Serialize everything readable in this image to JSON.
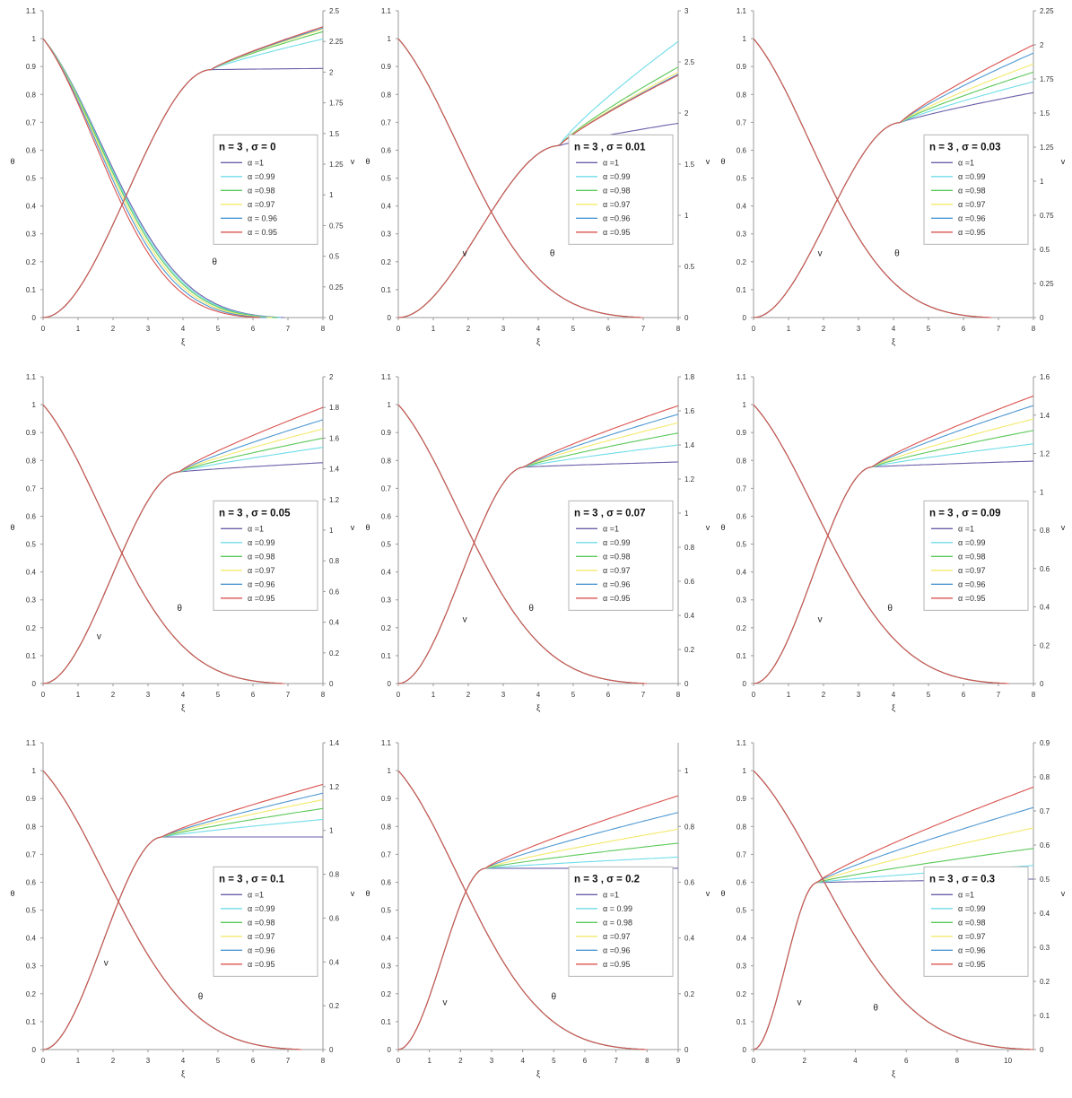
{
  "colors": {
    "a1": "#6b5fa8",
    "a099": "#6fdde8",
    "a098": "#5cc85a",
    "a097": "#f3e96b",
    "a096": "#4f98d2",
    "a095": "#d9534f",
    "axis": "#9a9a9a"
  },
  "chart_data": [
    {
      "type": "line",
      "legend_title": "n = 3 , σ = 0",
      "xlabel": "ξ",
      "ylabel_left": "θ",
      "ylabel_right": "v",
      "xlim": [
        0,
        8
      ],
      "xticks": [
        0,
        1,
        2,
        3,
        4,
        5,
        6,
        7,
        8
      ],
      "ylim_left": [
        0,
        1.1
      ],
      "yticks_left": [
        0,
        0.1,
        0.2,
        0.3,
        0.4,
        0.5,
        0.6,
        0.7,
        0.8,
        0.9,
        1,
        1.1
      ],
      "ylim_right": [
        0,
        2.5
      ],
      "yticks_right": [
        0,
        0.25,
        0.5,
        0.75,
        1,
        1.25,
        1.5,
        1.75,
        2,
        2.25,
        2.5
      ],
      "legend": [
        "α =1",
        "α =0.99",
        "α =0.98",
        "α =0.97",
        "α = 0.96",
        "α = 0.95"
      ],
      "annotations": [
        {
          "text": "θ",
          "x": 4.9,
          "y": 0.19
        }
      ],
      "theta_zero": [
        6.9,
        6.8,
        6.7,
        6.55,
        6.4,
        6.2
      ],
      "v_plateau": [
        2.02,
        2.02,
        2.02,
        2.02,
        2.02,
        2.02
      ],
      "v_knee": [
        4.8,
        4.8,
        4.8,
        4.8,
        4.8,
        4.8
      ],
      "v_end": [
        2.03,
        2.27,
        2.33,
        2.35,
        2.36,
        2.37
      ],
      "legend_pos": "middle-right"
    },
    {
      "type": "line",
      "legend_title": "n = 3 , σ = 0.01",
      "xlabel": "ξ",
      "ylabel_left": "θ",
      "ylabel_right": "v",
      "xlim": [
        0,
        8
      ],
      "xticks": [
        0,
        1,
        2,
        3,
        4,
        5,
        6,
        7,
        8
      ],
      "ylim_left": [
        0,
        1.1
      ],
      "yticks_left": [
        0,
        0.1,
        0.2,
        0.3,
        0.4,
        0.5,
        0.6,
        0.7,
        0.8,
        0.9,
        1,
        1.1
      ],
      "ylim_right": [
        0,
        3
      ],
      "yticks_right": [
        0,
        0.5,
        1,
        1.5,
        2,
        2.5,
        3
      ],
      "legend": [
        "α =1",
        "α =0.99",
        "α =0.98",
        "α =0.97",
        "α =0.96",
        "α =0.95"
      ],
      "annotations": [
        {
          "text": "v",
          "x": 1.9,
          "y": 0.22
        },
        {
          "text": "θ",
          "x": 4.4,
          "y": 0.22
        }
      ],
      "theta_zero": [
        7.0,
        7.0,
        7.0,
        7.0,
        7.0,
        7.0
      ],
      "v_plateau": [
        1.68,
        1.68,
        1.68,
        1.68,
        1.68,
        1.68
      ],
      "v_knee": [
        4.6,
        4.6,
        4.6,
        4.6,
        4.6,
        4.6
      ],
      "v_end": [
        1.9,
        2.7,
        2.45,
        2.4,
        2.38,
        2.37
      ],
      "legend_pos": "middle-right"
    },
    {
      "type": "line",
      "legend_title": "n = 3 , σ = 0.03",
      "xlabel": "ξ",
      "ylabel_left": "θ",
      "ylabel_right": "v",
      "xlim": [
        0,
        8
      ],
      "xticks": [
        0,
        1,
        2,
        3,
        4,
        5,
        6,
        7,
        8
      ],
      "ylim_left": [
        0,
        1.1
      ],
      "yticks_left": [
        0,
        0.1,
        0.2,
        0.3,
        0.4,
        0.5,
        0.6,
        0.7,
        0.8,
        0.9,
        1,
        1.1
      ],
      "ylim_right": [
        0,
        2.25
      ],
      "yticks_right": [
        0,
        0.25,
        0.5,
        0.75,
        1,
        1.25,
        1.5,
        1.75,
        2,
        2.25
      ],
      "legend": [
        "α =1",
        "α =0.99",
        "α =0.98",
        "α =0.97",
        "α =0.96",
        "α =0.95"
      ],
      "annotations": [
        {
          "text": "v",
          "x": 1.9,
          "y": 0.22
        },
        {
          "text": "θ",
          "x": 4.1,
          "y": 0.22
        }
      ],
      "theta_zero": [
        6.8,
        6.8,
        6.8,
        6.8,
        6.8,
        6.8
      ],
      "v_plateau": [
        1.43,
        1.43,
        1.43,
        1.43,
        1.43,
        1.43
      ],
      "v_knee": [
        4.2,
        4.2,
        4.2,
        4.2,
        4.2,
        4.2
      ],
      "v_end": [
        1.65,
        1.73,
        1.8,
        1.86,
        1.94,
        2.0
      ],
      "legend_pos": "middle-right"
    },
    {
      "type": "line",
      "legend_title": "n = 3 , σ = 0.05",
      "xlabel": "ξ",
      "ylabel_left": "θ",
      "ylabel_right": "v",
      "xlim": [
        0,
        8
      ],
      "xticks": [
        0,
        1,
        2,
        3,
        4,
        5,
        6,
        7,
        8
      ],
      "ylim_left": [
        0,
        1.1
      ],
      "yticks_left": [
        0,
        0.1,
        0.2,
        0.3,
        0.4,
        0.5,
        0.6,
        0.7,
        0.8,
        0.9,
        1,
        1.1
      ],
      "ylim_right": [
        0,
        2
      ],
      "yticks_right": [
        0,
        0.2,
        0.4,
        0.6,
        0.8,
        1,
        1.2,
        1.4,
        1.6,
        1.8,
        2
      ],
      "legend": [
        "α =1",
        "α =0.99",
        "α =0.98",
        "α =0.97",
        "α =0.96",
        "α =0.95"
      ],
      "annotations": [
        {
          "text": "v",
          "x": 1.6,
          "y": 0.16
        },
        {
          "text": "θ",
          "x": 3.9,
          "y": 0.26
        }
      ],
      "theta_zero": [
        6.9,
        6.9,
        6.9,
        6.9,
        6.9,
        6.9
      ],
      "v_plateau": [
        1.38,
        1.38,
        1.38,
        1.38,
        1.38,
        1.38
      ],
      "v_knee": [
        3.9,
        3.9,
        3.9,
        3.9,
        3.9,
        3.9
      ],
      "v_end": [
        1.44,
        1.54,
        1.6,
        1.66,
        1.72,
        1.8
      ],
      "legend_pos": "middle-right"
    },
    {
      "type": "line",
      "legend_title": "n = 3 , σ = 0.07",
      "xlabel": "ξ",
      "ylabel_left": "θ",
      "ylabel_right": "v",
      "xlim": [
        0,
        8
      ],
      "xticks": [
        0,
        1,
        2,
        3,
        4,
        5,
        6,
        7,
        8
      ],
      "ylim_left": [
        0,
        1.1
      ],
      "yticks_left": [
        0,
        0.1,
        0.2,
        0.3,
        0.4,
        0.5,
        0.6,
        0.7,
        0.8,
        0.9,
        1,
        1.1
      ],
      "ylim_right": [
        0,
        1.8
      ],
      "yticks_right": [
        0,
        0.2,
        0.4,
        0.6,
        0.8,
        1,
        1.2,
        1.4,
        1.6,
        1.8
      ],
      "legend": [
        "α =1",
        "α =0.99",
        "α =0.98",
        "α =0.97",
        "α =0.96",
        "α =0.95"
      ],
      "annotations": [
        {
          "text": "v",
          "x": 1.9,
          "y": 0.22
        },
        {
          "text": "θ",
          "x": 3.8,
          "y": 0.26
        }
      ],
      "theta_zero": [
        7.1,
        7.1,
        7.1,
        7.1,
        7.1,
        7.1
      ],
      "v_plateau": [
        1.27,
        1.27,
        1.27,
        1.27,
        1.27,
        1.27
      ],
      "v_knee": [
        3.6,
        3.6,
        3.6,
        3.6,
        3.6,
        3.6
      ],
      "v_end": [
        1.3,
        1.4,
        1.47,
        1.53,
        1.58,
        1.63
      ],
      "legend_pos": "middle-right"
    },
    {
      "type": "line",
      "legend_title": "n = 3 , σ = 0.09",
      "xlabel": "ξ",
      "ylabel_left": "θ",
      "ylabel_right": "v",
      "xlim": [
        0,
        8
      ],
      "xticks": [
        0,
        1,
        2,
        3,
        4,
        5,
        6,
        7,
        8
      ],
      "ylim_left": [
        0,
        1.1
      ],
      "yticks_left": [
        0,
        0.1,
        0.2,
        0.3,
        0.4,
        0.5,
        0.6,
        0.7,
        0.8,
        0.9,
        1,
        1.1
      ],
      "ylim_right": [
        0,
        1.6
      ],
      "yticks_right": [
        0,
        0.2,
        0.4,
        0.6,
        0.8,
        1,
        1.2,
        1.4,
        1.6
      ],
      "legend": [
        "α =1",
        "α =0.99",
        "α =0.98",
        "α =0.97",
        "α =0.96",
        "α =0.95"
      ],
      "annotations": [
        {
          "text": "v",
          "x": 1.9,
          "y": 0.22
        },
        {
          "text": "θ",
          "x": 3.9,
          "y": 0.26
        }
      ],
      "theta_zero": [
        7.3,
        7.3,
        7.3,
        7.3,
        7.3,
        7.3
      ],
      "v_plateau": [
        1.13,
        1.13,
        1.13,
        1.13,
        1.13,
        1.13
      ],
      "v_knee": [
        3.4,
        3.4,
        3.4,
        3.4,
        3.4,
        3.4
      ],
      "v_end": [
        1.16,
        1.25,
        1.32,
        1.38,
        1.45,
        1.5
      ],
      "legend_pos": "middle-right"
    },
    {
      "type": "line",
      "legend_title": "n = 3 , σ = 0.1",
      "xlabel": "ξ",
      "ylabel_left": "θ",
      "ylabel_right": "v",
      "xlim": [
        0,
        8
      ],
      "xticks": [
        0,
        1,
        2,
        3,
        4,
        5,
        6,
        7,
        8
      ],
      "ylim_left": [
        0,
        1.1
      ],
      "yticks_left": [
        0,
        0.1,
        0.2,
        0.3,
        0.4,
        0.5,
        0.6,
        0.7,
        0.8,
        0.9,
        1,
        1.1
      ],
      "ylim_right": [
        0,
        1.4
      ],
      "yticks_right": [
        0,
        0.2,
        0.4,
        0.6,
        0.8,
        1,
        1.2,
        1.4
      ],
      "legend": [
        "α =1",
        "α =0.99",
        "α =0.98",
        "α =0.97",
        "α =0.96",
        "α =0.95"
      ],
      "annotations": [
        {
          "text": "v",
          "x": 1.8,
          "y": 0.3
        },
        {
          "text": "θ",
          "x": 4.5,
          "y": 0.18
        }
      ],
      "theta_zero": [
        7.4,
        7.4,
        7.4,
        7.4,
        7.4,
        7.4
      ],
      "v_plateau": [
        0.97,
        0.97,
        0.97,
        0.97,
        0.97,
        0.97
      ],
      "v_knee": [
        3.4,
        3.4,
        3.4,
        3.4,
        3.4,
        3.4
      ],
      "v_end": [
        0.97,
        1.05,
        1.1,
        1.14,
        1.17,
        1.21
      ],
      "legend_pos": "middle-right"
    },
    {
      "type": "line",
      "legend_title": "n = 3 , σ = 0.2",
      "xlabel": "ξ",
      "ylabel_left": "θ",
      "ylabel_right": "v",
      "xlim": [
        0,
        9
      ],
      "xticks": [
        0,
        1,
        2,
        3,
        4,
        5,
        6,
        7,
        8,
        9
      ],
      "ylim_left": [
        0,
        1.1
      ],
      "yticks_left": [
        0,
        0.1,
        0.2,
        0.3,
        0.4,
        0.5,
        0.6,
        0.7,
        0.8,
        0.9,
        1,
        1.1
      ],
      "ylim_right": [
        0,
        1.1
      ],
      "yticks_right": [
        0,
        0.2,
        0.4,
        0.6,
        0.8,
        1
      ],
      "legend": [
        "α =1",
        "α = 0.99",
        "α = 0.98",
        "α =0.97",
        "α =0.96",
        "α =0.95"
      ],
      "annotations": [
        {
          "text": "v",
          "x": 1.5,
          "y": 0.16
        },
        {
          "text": "θ",
          "x": 5.0,
          "y": 0.18
        }
      ],
      "theta_zero": [
        8.0,
        8.0,
        8.0,
        8.0,
        8.0,
        8.0
      ],
      "v_plateau": [
        0.65,
        0.65,
        0.65,
        0.65,
        0.65,
        0.65
      ],
      "v_knee": [
        2.8,
        2.8,
        2.8,
        2.8,
        2.8,
        2.8
      ],
      "v_end": [
        0.65,
        0.69,
        0.74,
        0.79,
        0.85,
        0.91
      ],
      "legend_pos": "middle-right"
    },
    {
      "type": "line",
      "legend_title": "n = 3 , σ = 0.3",
      "xlabel": "ξ",
      "ylabel_left": "θ",
      "ylabel_right": "v",
      "xlim": [
        0,
        11
      ],
      "xticks": [
        0,
        2,
        4,
        6,
        8,
        10
      ],
      "ylim_left": [
        0,
        1.1
      ],
      "yticks_left": [
        0,
        0.1,
        0.2,
        0.3,
        0.4,
        0.5,
        0.6,
        0.7,
        0.8,
        0.9,
        1,
        1.1
      ],
      "ylim_right": [
        0,
        0.9
      ],
      "yticks_right": [
        0,
        0.1,
        0.2,
        0.3,
        0.4,
        0.5,
        0.6,
        0.7,
        0.8,
        0.9
      ],
      "legend": [
        "α =1",
        "α =0.99",
        "α =0.98",
        "α =0.97",
        "α =0.96",
        "α =0.95"
      ],
      "annotations": [
        {
          "text": "v",
          "x": 1.8,
          "y": 0.16
        },
        {
          "text": "θ",
          "x": 4.8,
          "y": 0.14
        }
      ],
      "theta_zero": [
        11,
        11,
        11,
        11,
        11,
        11
      ],
      "v_plateau": [
        0.49,
        0.49,
        0.49,
        0.49,
        0.49,
        0.49
      ],
      "v_knee": [
        2.5,
        2.5,
        2.5,
        2.5,
        2.5,
        2.5
      ],
      "v_end": [
        0.5,
        0.54,
        0.59,
        0.65,
        0.71,
        0.77
      ],
      "legend_pos": "middle-right"
    }
  ]
}
